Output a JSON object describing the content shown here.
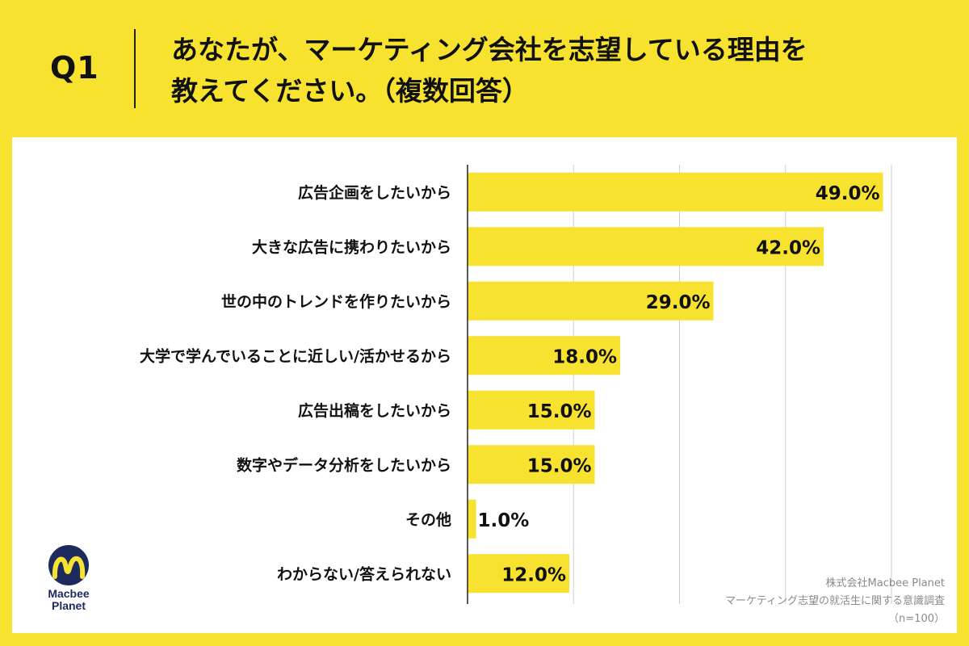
{
  "header": {
    "question_number": "Q1",
    "title_line1": "あなたが、マーケティング会社を志望している理由を",
    "title_line2": "教えてください。（複数回答）"
  },
  "chart_data": {
    "type": "bar",
    "orientation": "horizontal",
    "categories": [
      "広告企画をしたいから",
      "大きな広告に携わりたいから",
      "世の中のトレンドを作りたいから",
      "大学で学んでいることに近しい/活かせるから",
      "広告出稿をしたいから",
      "数字やデータ分析をしたいから",
      "その他",
      "わからない/答えられない"
    ],
    "values": [
      49.0,
      42.0,
      29.0,
      18.0,
      15.0,
      15.0,
      1.0,
      12.0
    ],
    "value_labels": [
      "49.0%",
      "42.0%",
      "29.0%",
      "18.0%",
      "15.0%",
      "15.0%",
      "1.0%",
      "12.0%"
    ],
    "xlim": [
      0,
      50
    ],
    "gridlines_at": [
      0,
      12.5,
      25,
      37.5,
      50
    ],
    "bar_color": "#f6e22f",
    "title": "",
    "xlabel": "",
    "ylabel": ""
  },
  "logo": {
    "line1": "Macbee",
    "line2": "Planet",
    "colors": {
      "navy": "#1c2a5e",
      "yellow": "#f6e22f"
    }
  },
  "source": {
    "company": "株式会社Macbee Planet",
    "survey": "マーケティング志望の就活生に関する意識調査",
    "sample": "（n=100）"
  }
}
